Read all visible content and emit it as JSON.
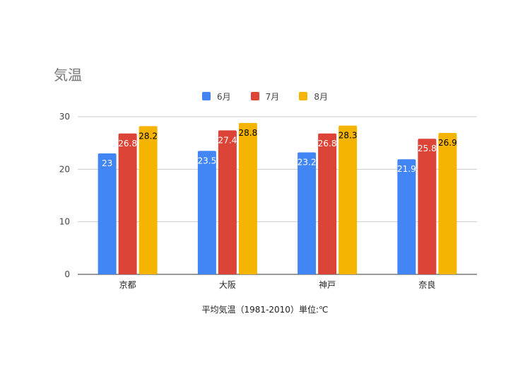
{
  "chart_data": {
    "type": "bar",
    "title": "気温",
    "xlabel": "平均気温（1981-2010）単位:℃",
    "ylabel": "",
    "categories": [
      "京都",
      "大阪",
      "神戸",
      "奈良"
    ],
    "series": [
      {
        "name": "6月",
        "color": "#4285f4",
        "values": [
          23,
          23.5,
          23.2,
          21.9
        ]
      },
      {
        "name": "7月",
        "color": "#db4437",
        "values": [
          26.8,
          27.4,
          26.8,
          25.8
        ]
      },
      {
        "name": "8月",
        "color": "#f4b400",
        "values": [
          28.2,
          28.8,
          28.3,
          26.9
        ]
      }
    ],
    "ylim": [
      0,
      30
    ],
    "yticks": [
      0,
      10,
      20,
      30
    ],
    "grid": true,
    "legend_position": "top",
    "data_label_colors": [
      "#ffffff",
      "#ffffff",
      "#000000"
    ]
  }
}
